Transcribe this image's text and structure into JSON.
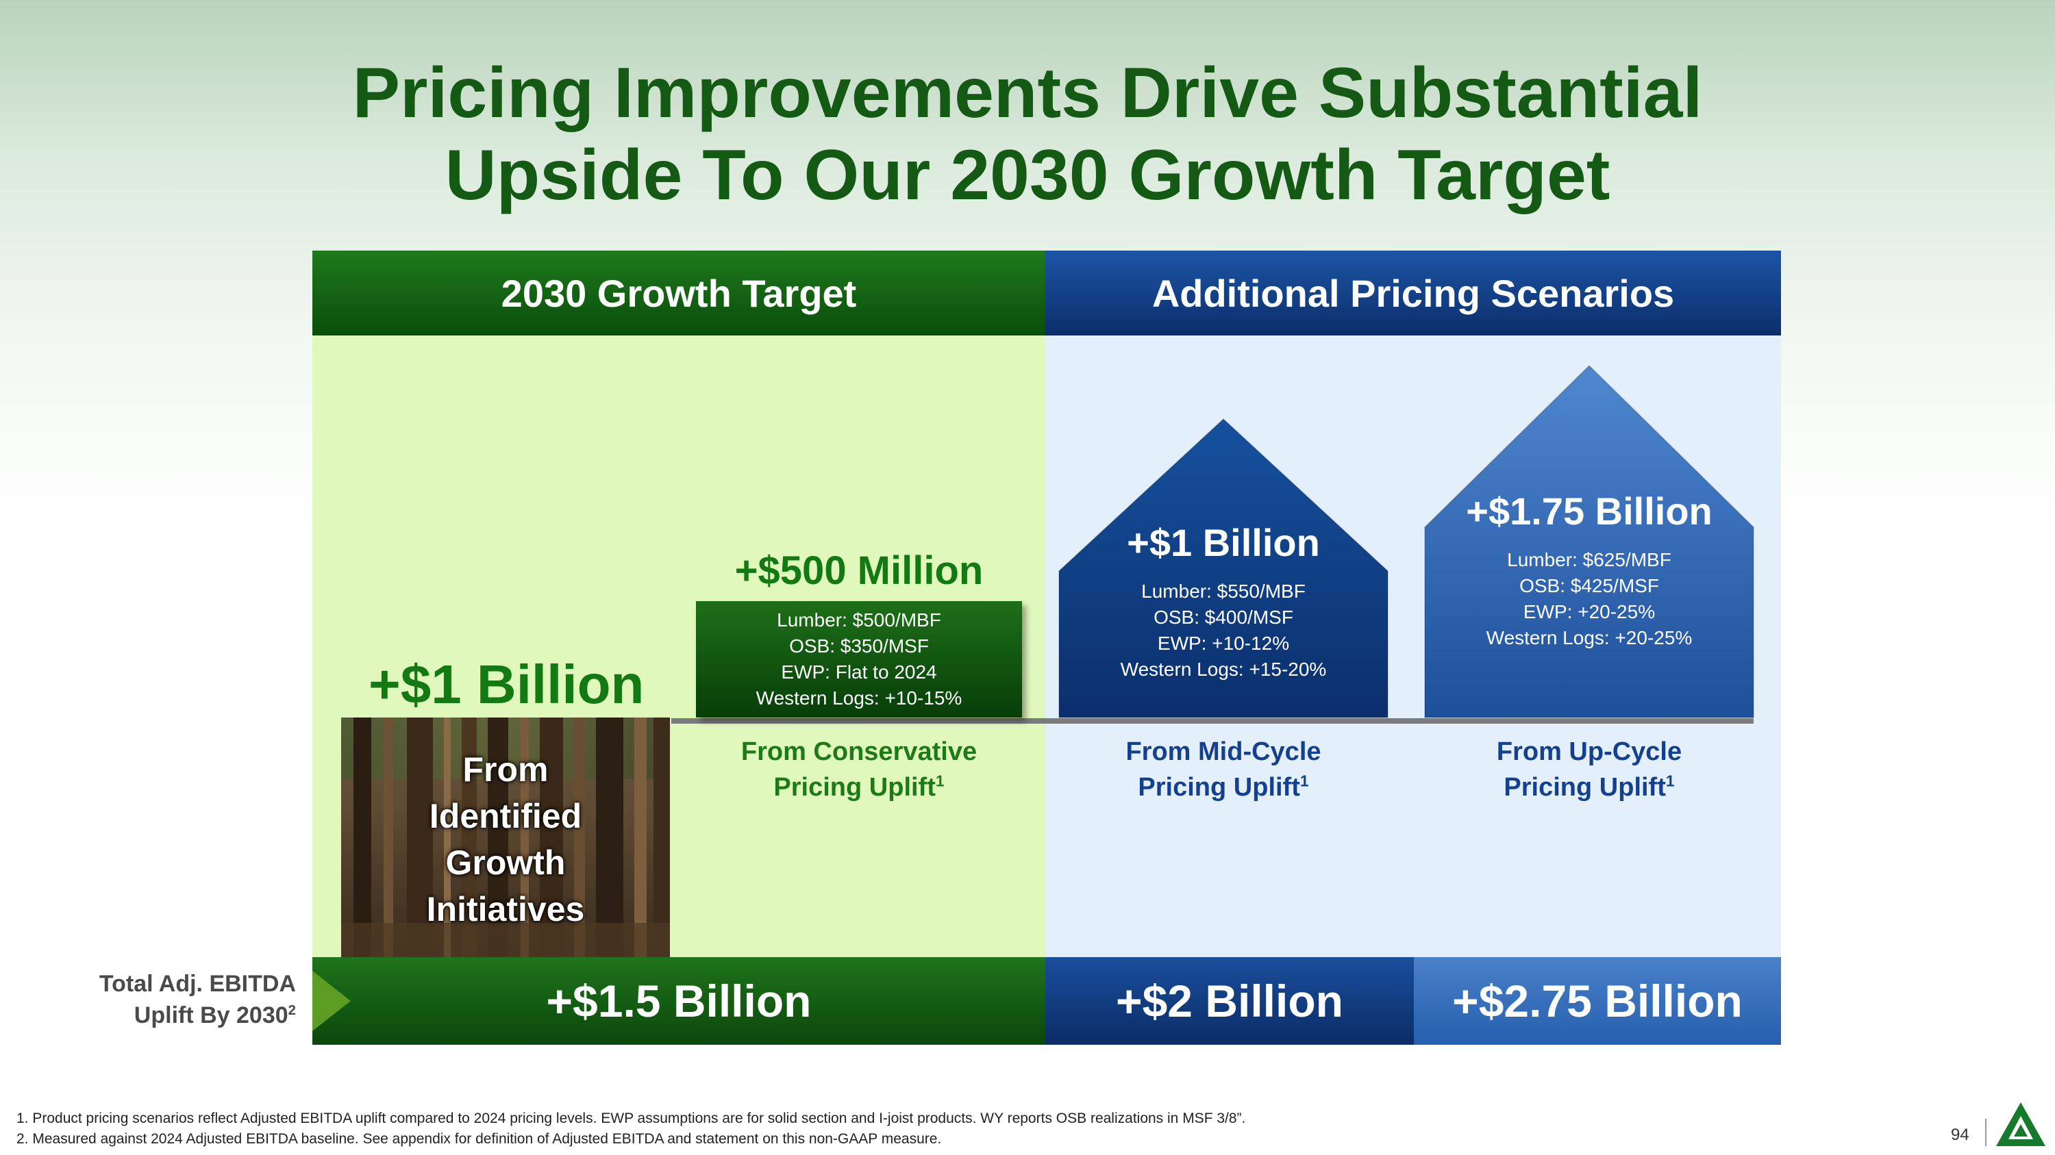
{
  "title": {
    "line1": "Pricing Improvements Drive Substantial",
    "line2": "Upside To Our 2030 Growth Target"
  },
  "headers": {
    "left": "2030 Growth Target",
    "right": "Additional Pricing Scenarios"
  },
  "growth_initiatives": {
    "value": "+$1 Billion",
    "label_lines": [
      "From",
      "Identified",
      "Growth",
      "Initiatives"
    ]
  },
  "conservative": {
    "value": "+$500 Million",
    "details": [
      "Lumber: $500/MBF",
      "OSB:  $350/MSF",
      "EWP: Flat to 2024",
      "Western Logs: +10-15%"
    ],
    "label_line1": "From Conservative",
    "label_line2": "Pricing Uplift",
    "footnote_ref": "1"
  },
  "mid_cycle": {
    "value": "+$1 Billion",
    "details": [
      "Lumber: $550/MBF",
      "OSB: $400/MSF",
      "EWP: +10-12%",
      "Western Logs: +15-20%"
    ],
    "label_line1": "From Mid-Cycle",
    "label_line2": "Pricing Uplift",
    "footnote_ref": "1"
  },
  "up_cycle": {
    "value": "+$1.75 Billion",
    "details": [
      "Lumber: $625/MBF",
      "OSB: $425/MSF",
      "EWP: +20-25%",
      "Western Logs: +20-25%"
    ],
    "label_line1": "From Up-Cycle",
    "label_line2": "Pricing Uplift",
    "footnote_ref": "1"
  },
  "totals": {
    "label_line1": "Total Adj. EBITDA",
    "label_line2": "Uplift By 2030",
    "label_ref": "2",
    "target": "+$1.5 Billion",
    "mid_cycle": "+$2 Billion",
    "up_cycle": "+$2.75 Billion"
  },
  "footnotes": [
    "1. Product pricing scenarios reflect Adjusted EBITDA uplift compared to 2024 pricing levels. EWP assumptions are for solid section and I-joist products. WY reports OSB realizations in MSF 3/8”.",
    "2. Measured against 2024 Adjusted EBITDA baseline. See appendix for definition of Adjusted EBITDA and statement on this non-GAAP measure."
  ],
  "page_number": "94",
  "colors": {
    "title_green": "#145a14",
    "accent_green": "#137a13",
    "accent_blue": "#14408d",
    "panel_green": "#e1f8bd",
    "panel_blue": "#e3f0fb"
  }
}
